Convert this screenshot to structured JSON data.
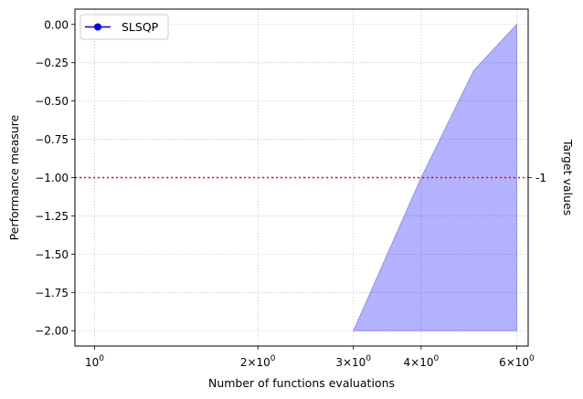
{
  "chart_data": {
    "type": "area",
    "xscale": "log",
    "xlabel": "Number of functions evaluations",
    "ylabel": "Performance measure",
    "right_label": "Target values",
    "xlim": [
      0.92,
      6.3
    ],
    "ylim": [
      -2.1,
      0.1
    ],
    "x_ticks": [
      {
        "value": 1,
        "base": "10",
        "exp": "0"
      },
      {
        "value": 2,
        "base": "2×10",
        "exp": "0"
      },
      {
        "value": 3,
        "base": "3×10",
        "exp": "0"
      },
      {
        "value": 4,
        "base": "4×10",
        "exp": "0"
      },
      {
        "value": 6,
        "base": "6×10",
        "exp": "0"
      }
    ],
    "y_ticks": [
      {
        "value": 0.0,
        "label": "0.00"
      },
      {
        "value": -0.25,
        "label": "−0.25"
      },
      {
        "value": -0.5,
        "label": "−0.50"
      },
      {
        "value": -0.75,
        "label": "−0.75"
      },
      {
        "value": -1.0,
        "label": "−1.00"
      },
      {
        "value": -1.25,
        "label": "−1.25"
      },
      {
        "value": -1.5,
        "label": "−1.50"
      },
      {
        "value": -1.75,
        "label": "−1.75"
      },
      {
        "value": -2.0,
        "label": "−2.00"
      }
    ],
    "target": {
      "value": -1.0,
      "label": "-1",
      "color": "#ff0000"
    },
    "grid": true,
    "legend_position": "top-left",
    "series": [
      {
        "name": "SLSQP",
        "color": "#0000ff",
        "fill_color": "#0000ff",
        "fill_opacity": 0.3,
        "upper": {
          "x": [
            3,
            4,
            5,
            6
          ],
          "y": [
            -2.0,
            -1.0,
            -0.3,
            0.0
          ]
        },
        "lower": {
          "x": [
            3,
            6
          ],
          "y": [
            -2.0,
            -2.0
          ]
        }
      }
    ]
  }
}
